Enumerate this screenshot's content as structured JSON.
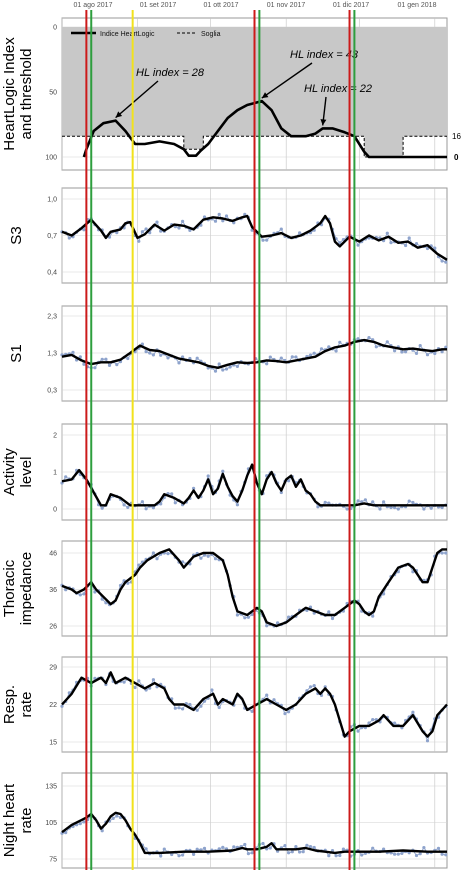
{
  "top_dates": [
    "01 ago 2017",
    "01 set 2017",
    "01 ott 2017",
    "01 nov 2017",
    "01 dic 2017",
    "01 gen 2018"
  ],
  "colors": {
    "event_red": "#cc1a1a",
    "event_green": "#2e9e3e",
    "event_yellow": "#f2e21c",
    "gray_fill": "#c8c8c8",
    "smooth_line": "#000000",
    "raw_points": "#8ea3cc"
  },
  "chart_data": [
    {
      "type": "line",
      "ylabel": "HeartLogic Index and threshold",
      "ylim": [
        0,
        100
      ],
      "yticks": [
        "0",
        "50",
        "100"
      ],
      "legend": {
        "placement": "top-left",
        "entries": [
          "Indice HeartLogic",
          "Soglia"
        ]
      },
      "right_labels": [
        "16",
        "0"
      ],
      "annotations": [
        "HL index = 28",
        "HL index = 43",
        "HL index = 22"
      ],
      "annotation_points": [
        [
          22,
          28
        ],
        [
          82,
          43
        ],
        [
          107,
          22
        ]
      ],
      "threshold": [
        [
          0,
          16
        ],
        [
          50,
          16
        ],
        [
          50,
          6
        ],
        [
          58,
          6
        ],
        [
          58,
          16
        ],
        [
          124,
          16
        ],
        [
          124,
          0
        ],
        [
          140,
          0
        ],
        [
          140,
          16
        ],
        [
          158,
          16
        ]
      ],
      "index": [
        [
          9,
          0
        ],
        [
          10,
          6
        ],
        [
          13,
          20
        ],
        [
          17,
          26
        ],
        [
          22,
          28
        ],
        [
          26,
          20
        ],
        [
          30,
          10
        ],
        [
          34,
          10
        ],
        [
          40,
          12
        ],
        [
          46,
          10
        ],
        [
          50,
          6
        ],
        [
          52,
          1
        ],
        [
          55,
          1
        ],
        [
          57,
          5
        ],
        [
          60,
          10
        ],
        [
          64,
          20
        ],
        [
          68,
          30
        ],
        [
          72,
          36
        ],
        [
          76,
          40
        ],
        [
          82,
          43
        ],
        [
          86,
          36
        ],
        [
          90,
          22
        ],
        [
          94,
          16
        ],
        [
          100,
          16
        ],
        [
          104,
          18
        ],
        [
          107,
          22
        ],
        [
          111,
          22
        ],
        [
          116,
          19
        ],
        [
          120,
          16
        ],
        [
          124,
          4
        ],
        [
          126,
          0
        ],
        [
          158,
          0
        ]
      ]
    },
    {
      "type": "line",
      "ylabel": "S3",
      "ylim": [
        0.4,
        1.0
      ],
      "yticks": [
        "1,0",
        "0,7",
        "0,4"
      ],
      "smooth": [
        [
          0,
          0.73
        ],
        [
          4,
          0.7
        ],
        [
          8,
          0.76
        ],
        [
          12,
          0.83
        ],
        [
          16,
          0.74
        ],
        [
          18,
          0.68
        ],
        [
          20,
          0.73
        ],
        [
          24,
          0.75
        ],
        [
          26,
          0.8
        ],
        [
          28,
          0.81
        ],
        [
          31,
          0.68
        ],
        [
          34,
          0.71
        ],
        [
          38,
          0.79
        ],
        [
          42,
          0.74
        ],
        [
          46,
          0.79
        ],
        [
          50,
          0.78
        ],
        [
          54,
          0.75
        ],
        [
          58,
          0.83
        ],
        [
          62,
          0.85
        ],
        [
          66,
          0.84
        ],
        [
          70,
          0.82
        ],
        [
          74,
          0.85
        ],
        [
          76,
          0.86
        ],
        [
          78,
          0.77
        ],
        [
          82,
          0.69
        ],
        [
          86,
          0.7
        ],
        [
          90,
          0.72
        ],
        [
          94,
          0.68
        ],
        [
          98,
          0.7
        ],
        [
          102,
          0.74
        ],
        [
          106,
          0.8
        ],
        [
          108,
          0.86
        ],
        [
          110,
          0.8
        ],
        [
          112,
          0.65
        ],
        [
          114,
          0.61
        ],
        [
          118,
          0.69
        ],
        [
          122,
          0.65
        ],
        [
          126,
          0.7
        ],
        [
          130,
          0.66
        ],
        [
          134,
          0.69
        ],
        [
          138,
          0.64
        ],
        [
          142,
          0.65
        ],
        [
          146,
          0.6
        ],
        [
          150,
          0.62
        ],
        [
          154,
          0.55
        ],
        [
          158,
          0.5
        ]
      ]
    },
    {
      "type": "line",
      "ylabel": "S1",
      "ylim": [
        0.3,
        2.3
      ],
      "yticks": [
        "2,3",
        "1,3",
        "0,3"
      ],
      "smooth": [
        [
          0,
          1.2
        ],
        [
          4,
          1.25
        ],
        [
          8,
          1.1
        ],
        [
          12,
          1.0
        ],
        [
          16,
          1.05
        ],
        [
          20,
          1.05
        ],
        [
          24,
          1.12
        ],
        [
          28,
          1.3
        ],
        [
          32,
          1.5
        ],
        [
          36,
          1.38
        ],
        [
          40,
          1.35
        ],
        [
          44,
          1.25
        ],
        [
          48,
          1.15
        ],
        [
          52,
          1.1
        ],
        [
          56,
          1.05
        ],
        [
          60,
          0.95
        ],
        [
          64,
          0.9
        ],
        [
          68,
          0.98
        ],
        [
          72,
          1.05
        ],
        [
          76,
          1.03
        ],
        [
          80,
          1.05
        ],
        [
          84,
          1.1
        ],
        [
          88,
          1.08
        ],
        [
          92,
          1.05
        ],
        [
          96,
          1.1
        ],
        [
          100,
          1.15
        ],
        [
          104,
          1.2
        ],
        [
          108,
          1.35
        ],
        [
          112,
          1.45
        ],
        [
          116,
          1.5
        ],
        [
          120,
          1.6
        ],
        [
          124,
          1.65
        ],
        [
          128,
          1.6
        ],
        [
          132,
          1.5
        ],
        [
          136,
          1.45
        ],
        [
          140,
          1.4
        ],
        [
          144,
          1.42
        ],
        [
          148,
          1.38
        ],
        [
          152,
          1.35
        ],
        [
          156,
          1.4
        ],
        [
          158,
          1.4
        ]
      ]
    },
    {
      "type": "line",
      "ylabel": "Activity level",
      "ylim": [
        0,
        2
      ],
      "yticks": [
        "2",
        "1",
        "0"
      ],
      "smooth": [
        [
          0,
          0.75
        ],
        [
          4,
          0.8
        ],
        [
          7,
          1.05
        ],
        [
          10,
          0.8
        ],
        [
          13,
          0.45
        ],
        [
          16,
          0.1
        ],
        [
          18,
          0.1
        ],
        [
          20,
          0.4
        ],
        [
          24,
          0.3
        ],
        [
          28,
          0.1
        ],
        [
          34,
          0.1
        ],
        [
          38,
          0.1
        ],
        [
          40,
          0.2
        ],
        [
          42,
          0.4
        ],
        [
          46,
          0.3
        ],
        [
          50,
          0.15
        ],
        [
          52,
          0.3
        ],
        [
          54,
          0.5
        ],
        [
          56,
          0.3
        ],
        [
          58,
          0.5
        ],
        [
          60,
          0.8
        ],
        [
          62,
          0.4
        ],
        [
          64,
          0.55
        ],
        [
          66,
          0.95
        ],
        [
          68,
          0.6
        ],
        [
          70,
          0.35
        ],
        [
          72,
          0.2
        ],
        [
          74,
          0.5
        ],
        [
          76,
          0.9
        ],
        [
          78,
          1.2
        ],
        [
          80,
          0.7
        ],
        [
          82,
          0.4
        ],
        [
          84,
          0.8
        ],
        [
          86,
          1.0
        ],
        [
          88,
          0.7
        ],
        [
          90,
          0.5
        ],
        [
          92,
          0.8
        ],
        [
          94,
          0.9
        ],
        [
          96,
          0.6
        ],
        [
          98,
          0.8
        ],
        [
          100,
          0.5
        ],
        [
          102,
          0.4
        ],
        [
          104,
          0.2
        ],
        [
          106,
          0.1
        ],
        [
          110,
          0.1
        ],
        [
          120,
          0.1
        ],
        [
          124,
          0.15
        ],
        [
          128,
          0.1
        ],
        [
          140,
          0.1
        ],
        [
          150,
          0.1
        ],
        [
          158,
          0.1
        ]
      ]
    },
    {
      "type": "line",
      "ylabel": "Thoracic impedance",
      "ylim": [
        26,
        46
      ],
      "yticks": [
        "46",
        "36",
        "26"
      ],
      "smooth": [
        [
          0,
          37
        ],
        [
          4,
          36
        ],
        [
          6,
          35
        ],
        [
          9,
          36
        ],
        [
          12,
          38
        ],
        [
          14,
          36
        ],
        [
          17,
          34
        ],
        [
          20,
          32
        ],
        [
          22,
          33
        ],
        [
          24,
          36
        ],
        [
          26,
          38
        ],
        [
          28,
          39
        ],
        [
          30,
          40
        ],
        [
          32,
          42
        ],
        [
          35,
          44
        ],
        [
          40,
          46
        ],
        [
          44,
          47
        ],
        [
          48,
          44
        ],
        [
          50,
          42
        ],
        [
          54,
          45
        ],
        [
          58,
          46
        ],
        [
          62,
          46
        ],
        [
          66,
          44
        ],
        [
          68,
          40
        ],
        [
          70,
          34
        ],
        [
          72,
          30
        ],
        [
          76,
          29
        ],
        [
          80,
          31
        ],
        [
          82,
          30
        ],
        [
          84,
          27
        ],
        [
          88,
          26
        ],
        [
          92,
          27
        ],
        [
          96,
          29
        ],
        [
          100,
          31
        ],
        [
          104,
          30
        ],
        [
          108,
          29
        ],
        [
          112,
          29
        ],
        [
          116,
          31
        ],
        [
          120,
          33
        ],
        [
          122,
          32
        ],
        [
          124,
          30
        ],
        [
          126,
          29
        ],
        [
          128,
          30
        ],
        [
          130,
          34
        ],
        [
          134,
          38
        ],
        [
          138,
          42
        ],
        [
          142,
          43
        ],
        [
          144,
          42
        ],
        [
          146,
          40
        ],
        [
          148,
          38
        ],
        [
          150,
          38
        ],
        [
          152,
          42
        ],
        [
          154,
          46
        ],
        [
          156,
          47
        ],
        [
          158,
          47
        ]
      ]
    },
    {
      "type": "line",
      "ylabel": "Resp. rate",
      "ylim": [
        15,
        29
      ],
      "yticks": [
        "29",
        "22",
        "15"
      ],
      "smooth": [
        [
          0,
          22
        ],
        [
          4,
          24
        ],
        [
          8,
          27
        ],
        [
          12,
          26
        ],
        [
          16,
          27
        ],
        [
          18,
          26
        ],
        [
          20,
          28
        ],
        [
          22,
          26
        ],
        [
          26,
          27
        ],
        [
          30,
          26
        ],
        [
          34,
          25
        ],
        [
          38,
          26
        ],
        [
          42,
          25
        ],
        [
          44,
          23
        ],
        [
          46,
          22
        ],
        [
          50,
          22
        ],
        [
          54,
          21
        ],
        [
          58,
          23
        ],
        [
          62,
          24
        ],
        [
          64,
          22
        ],
        [
          66,
          23
        ],
        [
          70,
          22
        ],
        [
          72,
          24
        ],
        [
          74,
          23
        ],
        [
          76,
          21
        ],
        [
          80,
          22
        ],
        [
          84,
          23
        ],
        [
          88,
          22
        ],
        [
          92,
          21
        ],
        [
          96,
          22
        ],
        [
          100,
          24
        ],
        [
          104,
          25
        ],
        [
          106,
          24
        ],
        [
          108,
          25
        ],
        [
          110,
          24
        ],
        [
          112,
          22
        ],
        [
          114,
          19
        ],
        [
          116,
          16
        ],
        [
          118,
          17
        ],
        [
          122,
          18
        ],
        [
          126,
          18
        ],
        [
          130,
          19
        ],
        [
          132,
          20
        ],
        [
          134,
          19
        ],
        [
          136,
          18
        ],
        [
          140,
          18
        ],
        [
          144,
          20
        ],
        [
          148,
          17
        ],
        [
          150,
          16
        ],
        [
          152,
          17
        ],
        [
          154,
          20
        ],
        [
          156,
          21
        ],
        [
          158,
          22
        ]
      ]
    },
    {
      "type": "line",
      "ylabel": "Night heart rate",
      "ylim": [
        75,
        135
      ],
      "yticks": [
        "135",
        "105",
        "75"
      ],
      "smooth": [
        [
          0,
          97
        ],
        [
          4,
          103
        ],
        [
          8,
          107
        ],
        [
          10,
          109
        ],
        [
          12,
          112
        ],
        [
          14,
          107
        ],
        [
          16,
          100
        ],
        [
          18,
          104
        ],
        [
          20,
          110
        ],
        [
          22,
          113
        ],
        [
          24,
          112
        ],
        [
          26,
          107
        ],
        [
          28,
          100
        ],
        [
          30,
          95
        ],
        [
          32,
          88
        ],
        [
          34,
          80
        ],
        [
          40,
          80
        ],
        [
          50,
          81
        ],
        [
          60,
          81
        ],
        [
          70,
          82
        ],
        [
          74,
          84
        ],
        [
          76,
          83
        ],
        [
          80,
          83
        ],
        [
          84,
          85
        ],
        [
          86,
          88
        ],
        [
          88,
          83
        ],
        [
          92,
          83
        ],
        [
          96,
          83
        ],
        [
          100,
          84
        ],
        [
          104,
          82
        ],
        [
          108,
          81
        ],
        [
          112,
          80
        ],
        [
          116,
          81
        ],
        [
          120,
          81
        ],
        [
          130,
          81
        ],
        [
          140,
          82
        ],
        [
          150,
          81
        ],
        [
          158,
          81
        ]
      ]
    }
  ]
}
